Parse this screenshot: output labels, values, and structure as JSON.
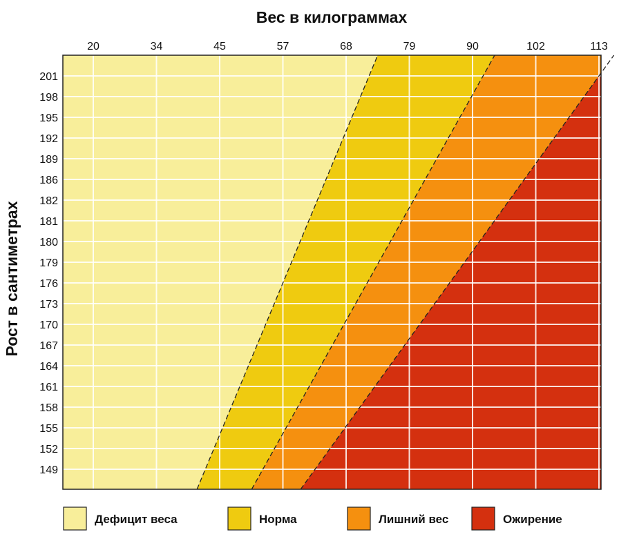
{
  "chart_data": {
    "type": "heatmap",
    "title": "Вес в килограммах",
    "xlabel": "Вес в килограммах",
    "ylabel": "Рост в сантиметрах",
    "x_ticks": [
      "20",
      "34",
      "45",
      "57",
      "68",
      "79",
      "90",
      "102",
      "113"
    ],
    "y_ticks": [
      "201",
      "198",
      "195",
      "192",
      "189",
      "186",
      "182",
      "181",
      "180",
      "179",
      "176",
      "173",
      "170",
      "167",
      "164",
      "161",
      "158",
      "155",
      "152",
      "149"
    ],
    "grid": true,
    "legend_position": "bottom",
    "categories": [
      {
        "name": "Дефицит веса",
        "color": "#F8EE9A"
      },
      {
        "name": "Норма",
        "color": "#EFCB10"
      },
      {
        "name": "Лишний вес",
        "color": "#F5900F"
      },
      {
        "name": "Ожирение",
        "color": "#D4300F"
      }
    ],
    "boundaries": [
      {
        "between": [
          "Дефицит веса",
          "Норма"
        ],
        "points": [
          {
            "x": 41,
            "y": 146
          },
          {
            "x": 72,
            "y": 201
          }
        ]
      },
      {
        "between": [
          "Норма",
          "Лишний вес"
        ],
        "points": [
          {
            "x": 51,
            "y": 146
          },
          {
            "x": 92,
            "y": 201
          }
        ]
      },
      {
        "between": [
          "Лишний вес",
          "Ожирение"
        ],
        "points": [
          {
            "x": 60,
            "y": 146
          },
          {
            "x": 113,
            "y": 201
          }
        ]
      }
    ]
  }
}
